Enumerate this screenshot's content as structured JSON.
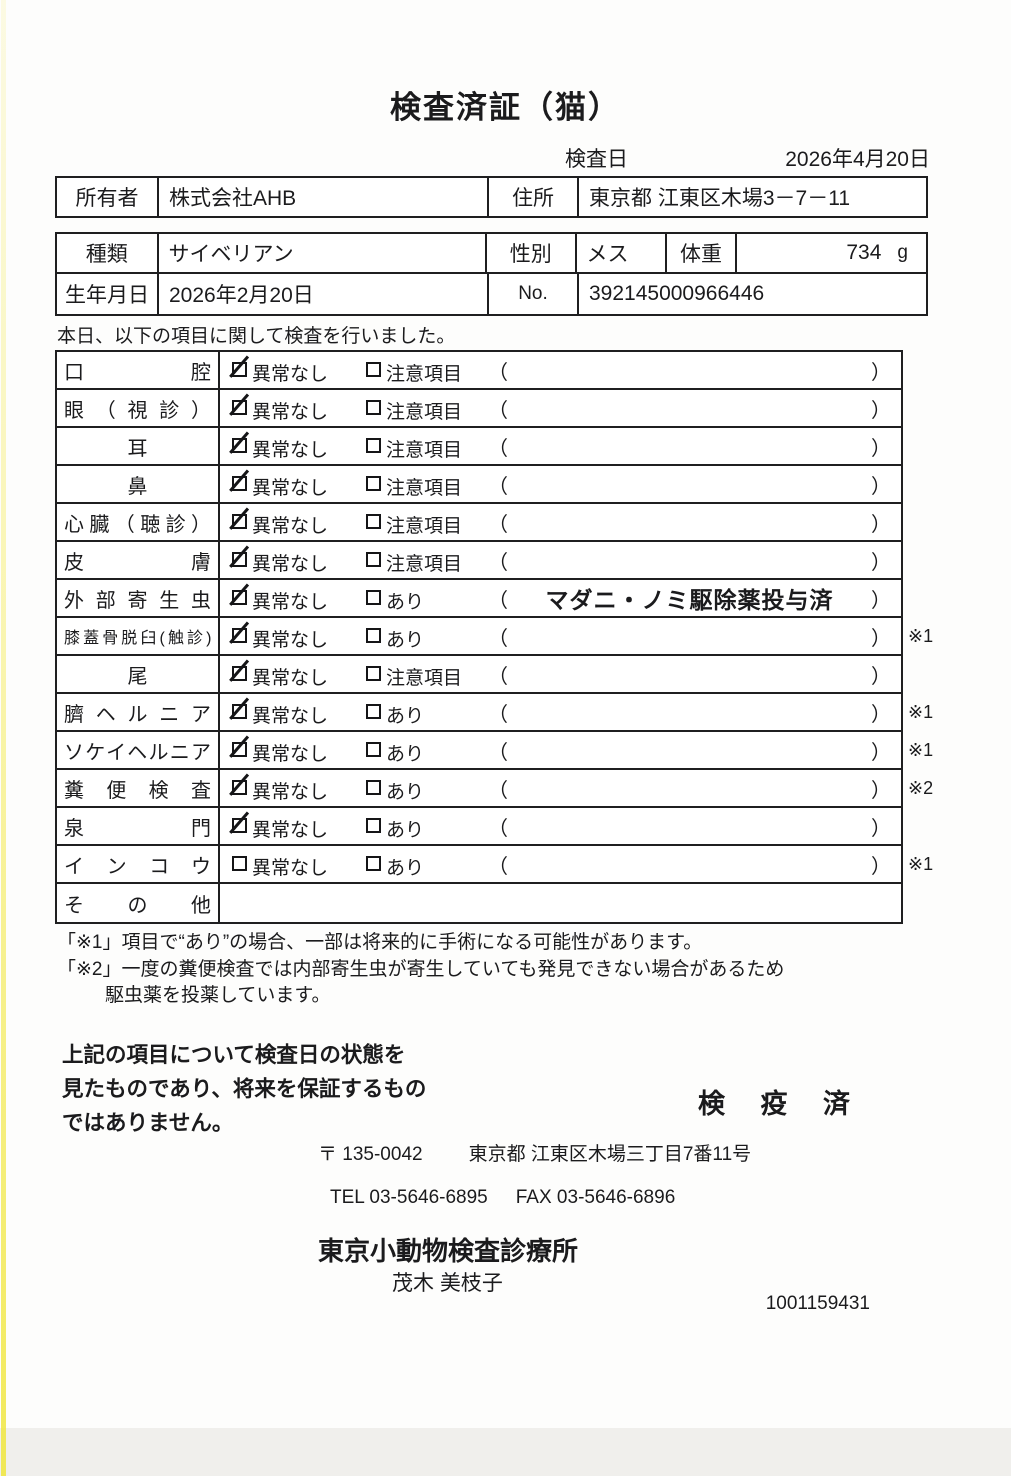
{
  "title": "検査済証（猫）",
  "inspection": {
    "label": "検査日",
    "date": "2026年4月20日"
  },
  "owner_table": {
    "owner_label": "所有者",
    "owner_value": "株式会社AHB",
    "address_label": "住所",
    "address_value": "東京都 江東区木場3－7－11"
  },
  "animal_table": {
    "breed_label": "種類",
    "breed_value": "サイベリアン",
    "sex_label": "性別",
    "sex_value": "メス",
    "weight_label": "体重",
    "weight_value": "734",
    "weight_unit": "g",
    "birth_label": "生年月日",
    "birth_value": "2026年2月20日",
    "no_label": "No.",
    "no_value": "392145000966446"
  },
  "checklist": {
    "intro": "本日、以下の項目に関して検査を行いました。",
    "paren_open": "（",
    "paren_close": "）",
    "rows": [
      {
        "label": "口腔",
        "opt1": "異常なし",
        "opt1_checked": true,
        "opt2": "注意項目",
        "opt2_checked": false,
        "paren": "",
        "note": ""
      },
      {
        "label": "眼（視診）",
        "opt1": "異常なし",
        "opt1_checked": true,
        "opt2": "注意項目",
        "opt2_checked": false,
        "paren": "",
        "note": ""
      },
      {
        "label": "耳",
        "opt1": "異常なし",
        "opt1_checked": true,
        "opt2": "注意項目",
        "opt2_checked": false,
        "paren": "",
        "note": ""
      },
      {
        "label": "鼻",
        "opt1": "異常なし",
        "opt1_checked": true,
        "opt2": "注意項目",
        "opt2_checked": false,
        "paren": "",
        "note": ""
      },
      {
        "label": "心臓（聴診）",
        "opt1": "異常なし",
        "opt1_checked": true,
        "opt2": "注意項目",
        "opt2_checked": false,
        "paren": "",
        "note": ""
      },
      {
        "label": "皮膚",
        "opt1": "異常なし",
        "opt1_checked": true,
        "opt2": "注意項目",
        "opt2_checked": false,
        "paren": "",
        "note": ""
      },
      {
        "label": "外部寄生虫",
        "opt1": "異常なし",
        "opt1_checked": true,
        "opt2": "あり",
        "opt2_checked": false,
        "paren": "マダニ・ノミ駆除薬投与済",
        "note": ""
      },
      {
        "label": "膝蓋骨脱臼(触診)",
        "opt1": "異常なし",
        "opt1_checked": true,
        "opt2": "あり",
        "opt2_checked": false,
        "paren": "",
        "note": "※1"
      },
      {
        "label": "尾",
        "opt1": "異常なし",
        "opt1_checked": true,
        "opt2": "注意項目",
        "opt2_checked": false,
        "paren": "",
        "note": ""
      },
      {
        "label": "臍ヘルニア",
        "opt1": "異常なし",
        "opt1_checked": true,
        "opt2": "あり",
        "opt2_checked": false,
        "paren": "",
        "note": "※1"
      },
      {
        "label": "ソケイヘルニア",
        "opt1": "異常なし",
        "opt1_checked": true,
        "opt2": "あり",
        "opt2_checked": false,
        "paren": "",
        "note": "※1"
      },
      {
        "label": "糞便検査",
        "opt1": "異常なし",
        "opt1_checked": true,
        "opt2": "あり",
        "opt2_checked": false,
        "paren": "",
        "note": "※2"
      },
      {
        "label": "泉門",
        "opt1": "異常なし",
        "opt1_checked": true,
        "opt2": "あり",
        "opt2_checked": false,
        "paren": "",
        "note": ""
      },
      {
        "label": "インコウ",
        "opt1": "異常なし",
        "opt1_checked": false,
        "opt2": "あり",
        "opt2_checked": false,
        "paren": "",
        "note": "※1"
      },
      {
        "label": "その他"
      }
    ]
  },
  "notes": {
    "line1": "「※1」項目で“あり”の場合、一部は将来的に手術になる可能性があります。",
    "line2": "「※2」一度の糞便検査では内部寄生虫が寄生していても発見できない場合があるため",
    "line3": "駆虫薬を投薬しています。"
  },
  "statement": {
    "line1": "上記の項目について検査日の状態を",
    "line2": "見たものであり、将来を保証するもの",
    "line3": "ではありません。"
  },
  "stamp": "検 疫 済",
  "clinic": {
    "postal": "〒 135-0042",
    "address": "東京都 江東区木場三丁目7番11号",
    "tel": "TEL 03-5646-6895",
    "fax": "FAX 03-5646-6896",
    "name": "東京小動物検査診療所",
    "veterinarian": "茂木 美枝子",
    "serial": "1001159431"
  }
}
